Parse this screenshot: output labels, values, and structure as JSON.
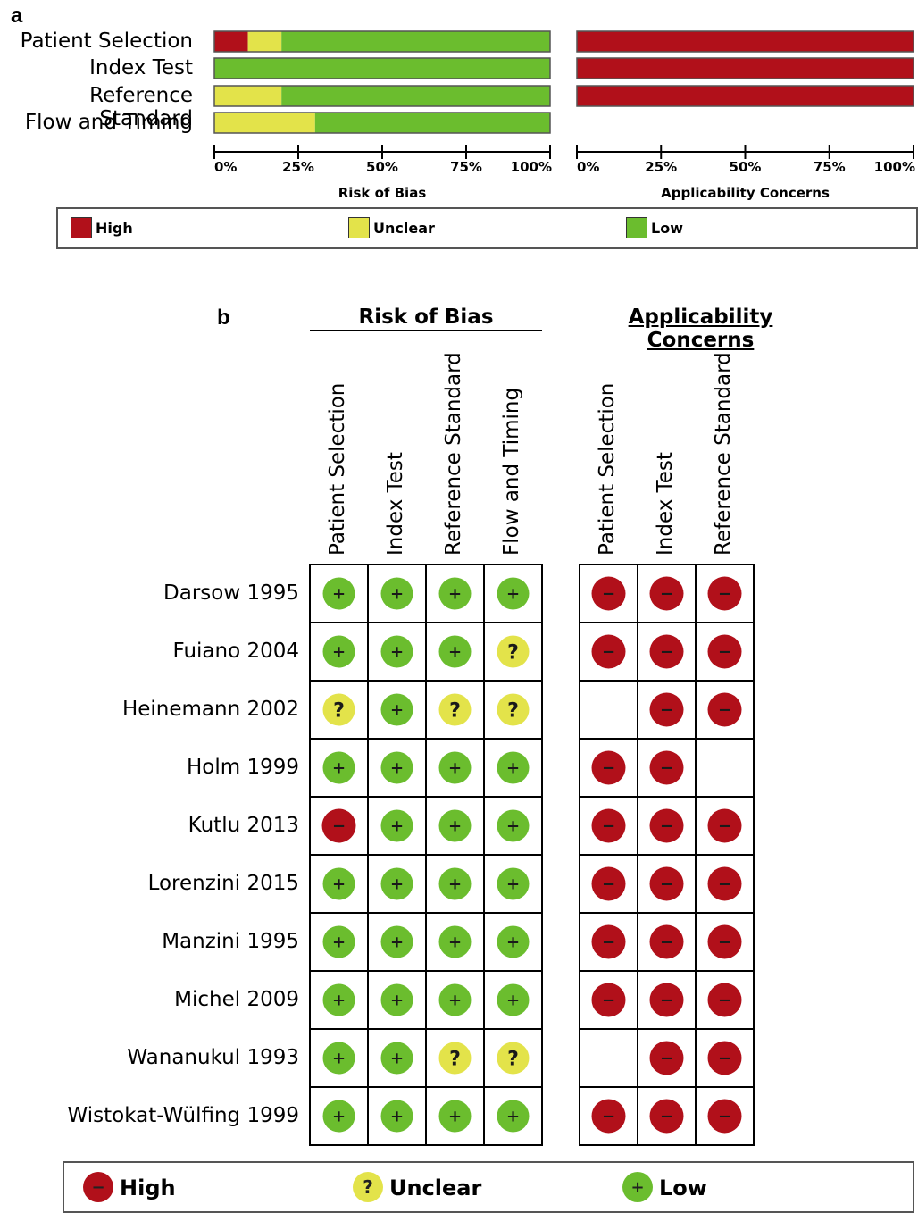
{
  "colors": {
    "high": "#b1101a",
    "unclear": "#e3e34a",
    "low": "#6bbd2e",
    "outline": "#555555"
  },
  "panel_a": {
    "letter": "a",
    "legend": {
      "high": "High",
      "unclear": "Unclear",
      "low": "Low"
    }
  },
  "panel_b": {
    "letter": "b",
    "legend": {
      "high": "High",
      "unclear": "Unclear",
      "low": "Low"
    }
  },
  "chart_data": [
    {
      "type": "bar",
      "orientation": "horizontal-stacked-percent",
      "title": "",
      "categories": [
        "Patient Selection",
        "Index Test",
        "Reference Standard",
        "Flow and Timing"
      ],
      "groups": [
        {
          "xlabel": "Risk of Bias",
          "series": [
            {
              "name": "High",
              "values": [
                10,
                0,
                0,
                0
              ]
            },
            {
              "name": "Unclear",
              "values": [
                10,
                0,
                20,
                30
              ]
            },
            {
              "name": "Low",
              "values": [
                80,
                100,
                80,
                70
              ]
            }
          ]
        },
        {
          "xlabel": "Applicability Concerns",
          "series": [
            {
              "name": "High",
              "values": [
                100,
                100,
                100,
                null
              ]
            },
            {
              "name": "Unclear",
              "values": [
                0,
                0,
                0,
                null
              ]
            },
            {
              "name": "Low",
              "values": [
                0,
                0,
                0,
                null
              ]
            }
          ]
        }
      ],
      "xticks": [
        "0%",
        "25%",
        "50%",
        "75%",
        "100%"
      ],
      "xlim": [
        0,
        100
      ],
      "legend": {
        "position": "bottom",
        "entries": [
          "High",
          "Unclear",
          "Low"
        ]
      }
    },
    {
      "type": "table",
      "title": "",
      "groups": [
        {
          "name": "Risk of Bias",
          "columns": [
            "Patient Selection",
            "Index Test",
            "Reference Standard",
            "Flow and Timing"
          ]
        },
        {
          "name": "Applicability Concerns",
          "columns": [
            "Patient Selection",
            "Index Test",
            "Reference Standard"
          ]
        }
      ],
      "studies": [
        {
          "name": "Darsow 1995",
          "risk_of_bias": [
            "low",
            "low",
            "low",
            "low"
          ],
          "applicability": [
            "high",
            "high",
            "high"
          ]
        },
        {
          "name": "Fuiano 2004",
          "risk_of_bias": [
            "low",
            "low",
            "low",
            "unclear"
          ],
          "applicability": [
            "high",
            "high",
            "high"
          ]
        },
        {
          "name": "Heinemann 2002",
          "risk_of_bias": [
            "unclear",
            "low",
            "unclear",
            "unclear"
          ],
          "applicability": [
            null,
            "high",
            "high"
          ]
        },
        {
          "name": "Holm 1999",
          "risk_of_bias": [
            "low",
            "low",
            "low",
            "low"
          ],
          "applicability": [
            "high",
            "high",
            null
          ]
        },
        {
          "name": "Kutlu 2013",
          "risk_of_bias": [
            "high",
            "low",
            "low",
            "low"
          ],
          "applicability": [
            "high",
            "high",
            "high"
          ]
        },
        {
          "name": "Lorenzini  2015",
          "risk_of_bias": [
            "low",
            "low",
            "low",
            "low"
          ],
          "applicability": [
            "high",
            "high",
            "high"
          ]
        },
        {
          "name": "Manzini  1995",
          "risk_of_bias": [
            "low",
            "low",
            "low",
            "low"
          ],
          "applicability": [
            "high",
            "high",
            "high"
          ]
        },
        {
          "name": "Michel 2009",
          "risk_of_bias": [
            "low",
            "low",
            "low",
            "low"
          ],
          "applicability": [
            "high",
            "high",
            "high"
          ]
        },
        {
          "name": "Wananukul  1993",
          "risk_of_bias": [
            "low",
            "low",
            "unclear",
            "unclear"
          ],
          "applicability": [
            null,
            "high",
            "high"
          ]
        },
        {
          "name": "Wistokat-Wülfing 1999",
          "risk_of_bias": [
            "low",
            "low",
            "low",
            "low"
          ],
          "applicability": [
            "high",
            "high",
            "high"
          ]
        }
      ],
      "symbols": {
        "high": "−",
        "unclear": "?",
        "low": "+"
      },
      "legend": {
        "position": "bottom",
        "entries": [
          "High",
          "Unclear",
          "Low"
        ]
      }
    }
  ]
}
